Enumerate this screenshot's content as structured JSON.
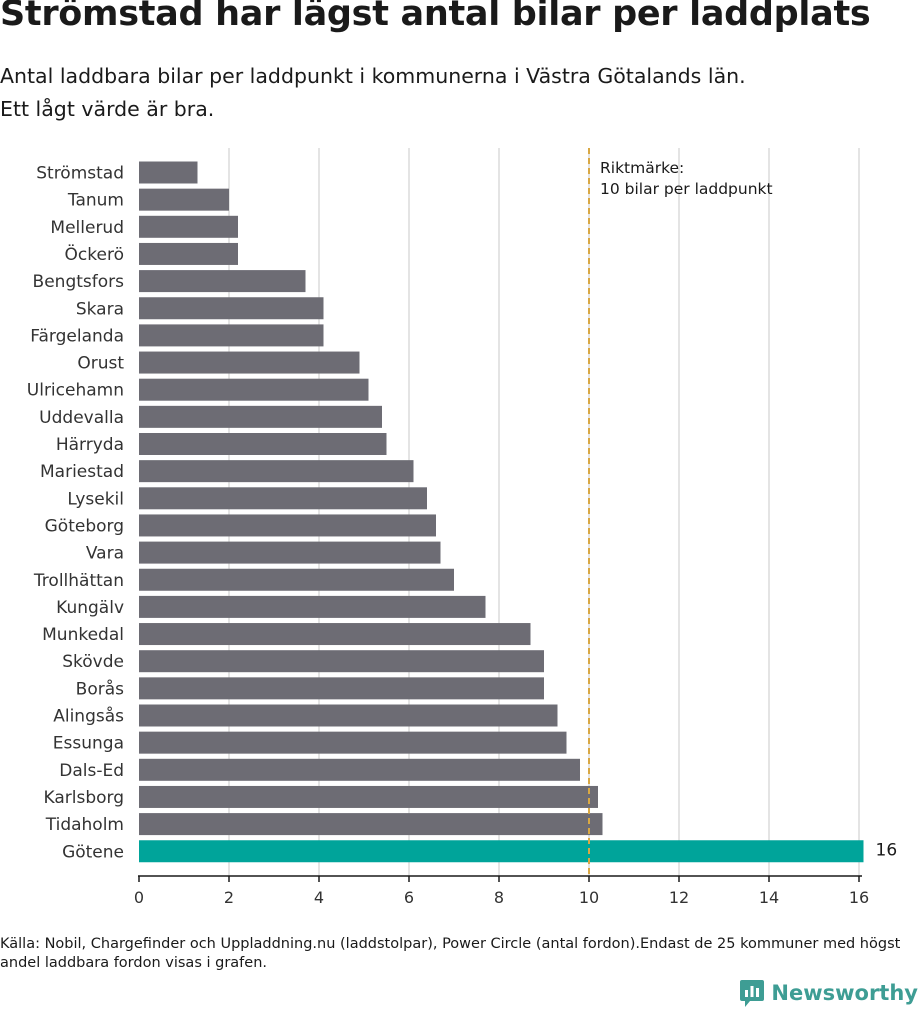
{
  "title": "Strömstad har lägst antal bilar per laddplats",
  "subtitle_line1": "Antal laddbara bilar per laddpunkt i kommunerna i Västra Götalands län.",
  "subtitle_line2": "Ett lågt värde är bra.",
  "source": "Källa: Nobil, Chargefinder och Uppladdning.nu (laddstolpar), Power Circle (antal fordon).Endast de 25 kommuner med högst andel laddbara fordon visas i grafen.",
  "brand": "Newsworthy",
  "chart_data": {
    "type": "bar",
    "orientation": "horizontal",
    "categories": [
      "Strömstad",
      "Tanum",
      "Mellerud",
      "Öckerö",
      "Bengtsfors",
      "Skara",
      "Färgelanda",
      "Orust",
      "Ulricehamn",
      "Uddevalla",
      "Härryda",
      "Mariestad",
      "Lysekil",
      "Göteborg",
      "Vara",
      "Trollhättan",
      "Kungälv",
      "Munkedal",
      "Skövde",
      "Borås",
      "Alingsås",
      "Essunga",
      "Dals-Ed",
      "Karlsborg",
      "Tidaholm",
      "Götene"
    ],
    "values": [
      1.3,
      2.0,
      2.2,
      2.2,
      3.7,
      4.1,
      4.1,
      4.9,
      5.1,
      5.4,
      5.5,
      6.1,
      6.4,
      6.6,
      6.7,
      7.0,
      7.7,
      8.7,
      9.0,
      9.0,
      9.3,
      9.5,
      9.8,
      10.2,
      10.3,
      16.1
    ],
    "highlight": {
      "category": "Götene",
      "value_label": "16",
      "color": "#00a49a"
    },
    "bar_color": "#6d6c74",
    "xlim": [
      0,
      16
    ],
    "xticks": [
      0,
      2,
      4,
      6,
      8,
      10,
      12,
      14,
      16
    ],
    "grid": true,
    "reference_line": {
      "value": 10,
      "label_line1": "Riktmärke:",
      "label_line2": "10 bilar per laddpunkt",
      "color": "#d9a844"
    }
  }
}
